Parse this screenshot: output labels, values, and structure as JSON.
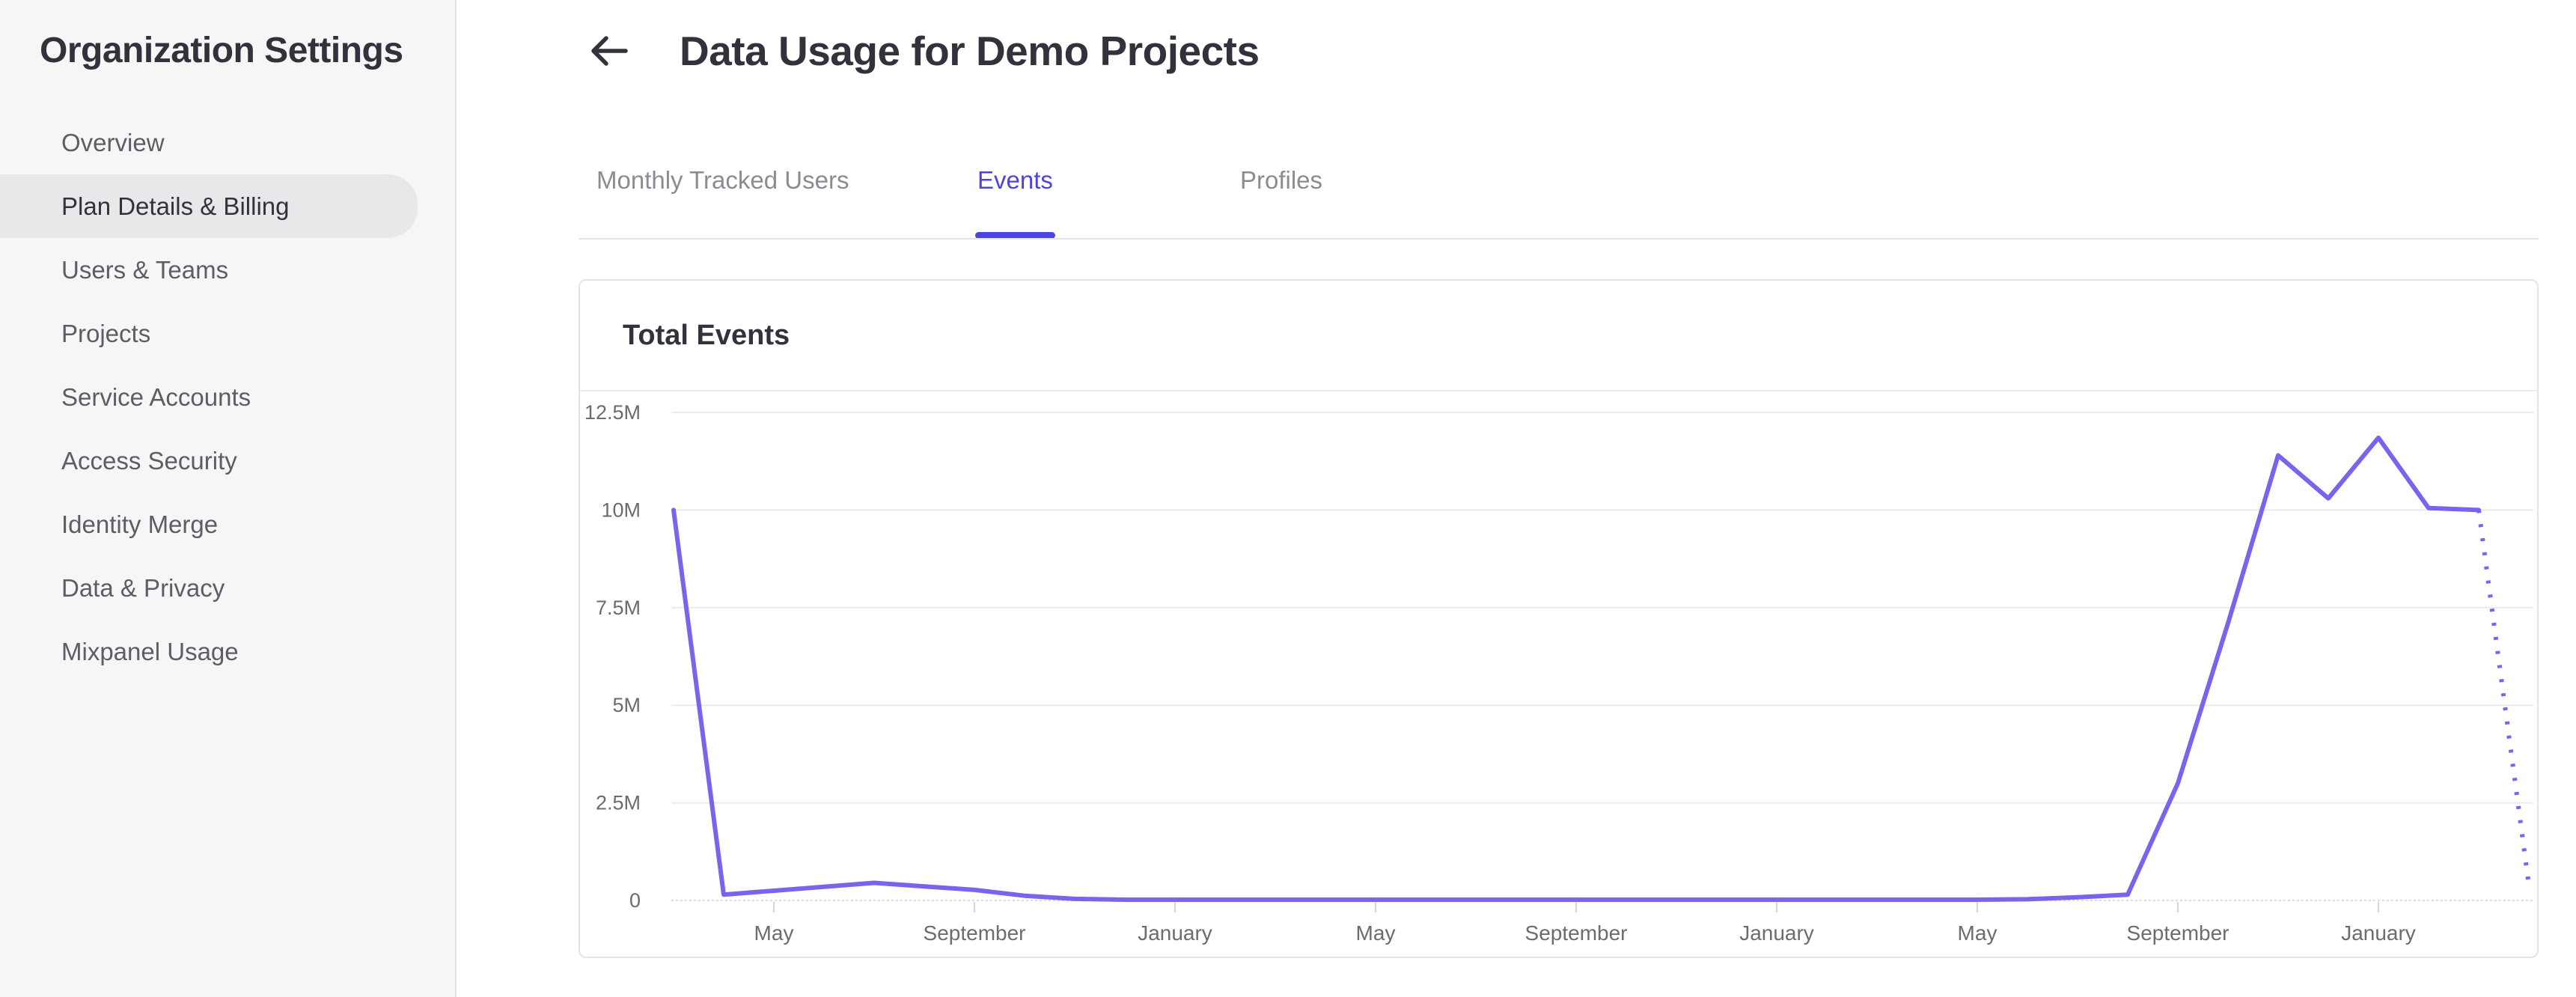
{
  "sidebar": {
    "title": "Organization Settings",
    "items": [
      {
        "label": "Overview",
        "active": false
      },
      {
        "label": "Plan Details & Billing",
        "active": true
      },
      {
        "label": "Users & Teams",
        "active": false
      },
      {
        "label": "Projects",
        "active": false
      },
      {
        "label": "Service Accounts",
        "active": false
      },
      {
        "label": "Access Security",
        "active": false
      },
      {
        "label": "Identity Merge",
        "active": false
      },
      {
        "label": "Data & Privacy",
        "active": false
      },
      {
        "label": "Mixpanel Usage",
        "active": false
      }
    ]
  },
  "header": {
    "title": "Data Usage for Demo Projects",
    "back_icon": "left-arrow"
  },
  "tabs": [
    {
      "label": "Monthly Tracked Users",
      "active": false
    },
    {
      "label": "Events",
      "active": true
    },
    {
      "label": "Profiles",
      "active": false
    }
  ],
  "card": {
    "title": "Total Events"
  },
  "colors": {
    "accent": "#4f43e0",
    "chart_line": "#7765ee",
    "text_dark": "#32323c",
    "text_gray": "#5d5d66",
    "tab_inactive": "#8b8b94",
    "axis_label": "#6b6b72",
    "sidebar_bg": "#f6f6f7",
    "active_item_bg": "#e8e8ea",
    "border": "#e3e3e6",
    "card_border": "#e4e4e7",
    "grid": "#ebebed",
    "tick": "#d5d5d8"
  },
  "chart_data": {
    "type": "line",
    "title": "Total Events",
    "xlabel": "",
    "ylabel": "",
    "grid": true,
    "legend": false,
    "ylim_millions": [
      0,
      12.5
    ],
    "y_ticks": [
      {
        "label": "12.5M",
        "value": 12.5
      },
      {
        "label": "10M",
        "value": 10
      },
      {
        "label": "7.5M",
        "value": 7.5
      },
      {
        "label": "5M",
        "value": 5
      },
      {
        "label": "2.5M",
        "value": 2.5
      },
      {
        "label": "0",
        "value": 0
      }
    ],
    "x_ticks": [
      {
        "index": 2,
        "label": "May"
      },
      {
        "index": 6,
        "label": "September"
      },
      {
        "index": 10,
        "label": "January"
      },
      {
        "index": 14,
        "label": "May"
      },
      {
        "index": 18,
        "label": "September"
      },
      {
        "index": 22,
        "label": "January"
      },
      {
        "index": 26,
        "label": "May"
      },
      {
        "index": 30,
        "label": "September"
      },
      {
        "index": 34,
        "label": "January"
      }
    ],
    "series": [
      {
        "name": "Total Events",
        "unit": "millions",
        "values_millions": [
          10,
          0.15,
          0.25,
          0.35,
          0.45,
          0.36,
          0.27,
          0.12,
          0.04,
          0.02,
          0.02,
          0.02,
          0.02,
          0.02,
          0.02,
          0.02,
          0.02,
          0.02,
          0.02,
          0.02,
          0.02,
          0.02,
          0.02,
          0.02,
          0.02,
          0.02,
          0.02,
          0.03,
          0.08,
          0.15,
          3.0,
          7.1,
          11.4,
          10.3,
          11.85,
          10.05,
          10.0,
          0.4
        ]
      }
    ],
    "projection": {
      "from_index": 36,
      "style": "dotted"
    }
  }
}
